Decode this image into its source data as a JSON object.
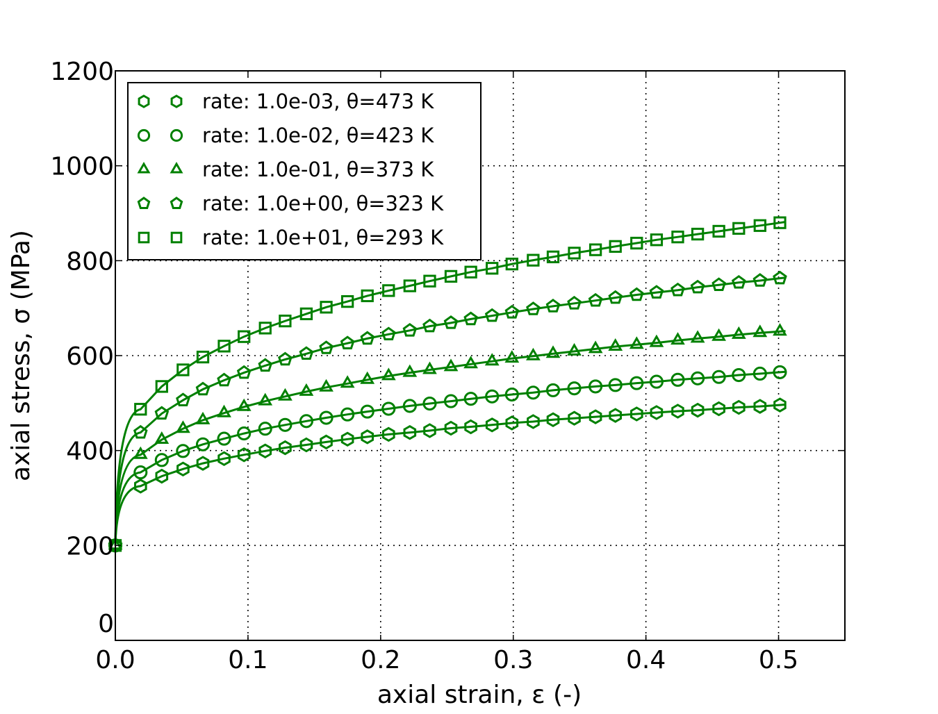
{
  "chart_data": {
    "type": "line",
    "title": "",
    "xlabel": "axial strain, ε (-)",
    "ylabel": "axial stress, σ (MPa)",
    "xlim": [
      0,
      0.55
    ],
    "ylim": [
      0,
      1200
    ],
    "grid": true,
    "legend_position": "top-left",
    "color": "#008000",
    "xticks": [
      "0.0",
      "0.1",
      "0.2",
      "0.3",
      "0.4",
      "0.5"
    ],
    "yticks": [
      "0",
      "200",
      "400",
      "600",
      "800",
      "1000",
      "1200"
    ],
    "x": [
      0,
      0.019,
      0.035,
      0.051,
      0.066,
      0.082,
      0.097,
      0.113,
      0.128,
      0.144,
      0.159,
      0.175,
      0.19,
      0.206,
      0.222,
      0.237,
      0.253,
      0.268,
      0.284,
      0.299,
      0.315,
      0.33,
      0.346,
      0.362,
      0.377,
      0.393,
      0.408,
      0.424,
      0.439,
      0.455,
      0.47,
      0.486,
      0.501
    ],
    "series": [
      {
        "name": "rate: 1.0e-03, θ=473 K",
        "marker": "hexagon",
        "values": [
          200,
          325,
          346,
          361,
          373,
          383,
          391,
          399,
          406,
          412,
          418,
          424,
          429,
          434,
          438,
          442,
          447,
          450,
          454,
          458,
          461,
          465,
          468,
          471,
          474,
          477,
          480,
          483,
          485,
          488,
          491,
          493,
          496
        ]
      },
      {
        "name": "rate: 1.0e-02, θ=423 K",
        "marker": "circle",
        "values": [
          200,
          354,
          380,
          399,
          413,
          425,
          436,
          446,
          454,
          462,
          469,
          476,
          482,
          488,
          494,
          499,
          504,
          509,
          514,
          518,
          522,
          527,
          531,
          535,
          538,
          542,
          545,
          549,
          552,
          555,
          559,
          562,
          565
        ]
      },
      {
        "name": "rate: 1.0e-01, θ=373 K",
        "marker": "triangle",
        "values": [
          200,
          391,
          423,
          446,
          464,
          479,
          492,
          504,
          514,
          524,
          533,
          541,
          549,
          557,
          564,
          570,
          576,
          582,
          588,
          594,
          599,
          604,
          609,
          614,
          619,
          623,
          627,
          632,
          636,
          640,
          644,
          648,
          651
        ]
      },
      {
        "name": "rate: 1.0e+00, θ=323 K",
        "marker": "pentagon",
        "values": [
          200,
          438,
          478,
          506,
          529,
          548,
          564,
          579,
          592,
          604,
          616,
          626,
          636,
          645,
          653,
          662,
          669,
          677,
          684,
          691,
          698,
          704,
          710,
          716,
          722,
          728,
          733,
          738,
          744,
          749,
          754,
          758,
          763
        ]
      },
      {
        "name": "rate: 1.0e+01, θ=293 K",
        "marker": "square",
        "values": [
          200,
          487,
          535,
          570,
          597,
          620,
          640,
          658,
          673,
          688,
          702,
          714,
          726,
          737,
          747,
          757,
          767,
          776,
          784,
          793,
          801,
          808,
          816,
          823,
          830,
          837,
          844,
          850,
          856,
          862,
          868,
          874,
          880
        ]
      }
    ]
  }
}
